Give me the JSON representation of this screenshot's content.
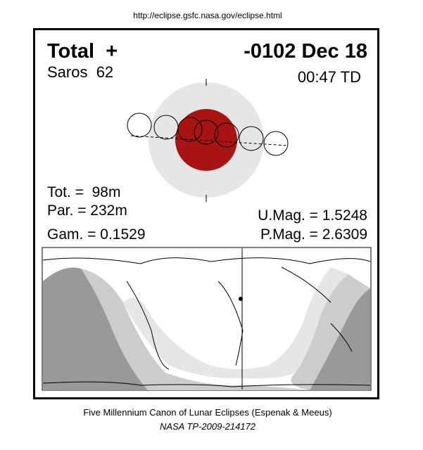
{
  "url": "http://eclipse.gsfc.nasa.gov/eclipse.html",
  "header": {
    "type": "Total  +",
    "date": "-0102 Dec 18",
    "saros": "Saros  62",
    "time": "00:47 TD"
  },
  "stats": {
    "tot": "Tot. =  98m",
    "par": "Par. = 232m",
    "gam": "Gam. = 0.1529",
    "umag": "U.Mag. = 1.5248",
    "pmag": "P.Mag. = 2.6309"
  },
  "footer": {
    "line1": "Five Millennium Canon of Lunar Eclipses (Espenak & Meeus)",
    "line2": "NASA TP-2009-214172"
  }
}
